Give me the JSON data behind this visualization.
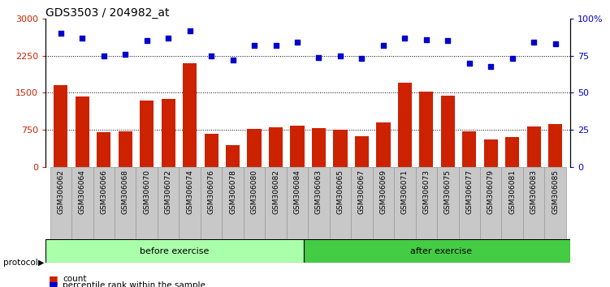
{
  "title": "GDS3503 / 204982_at",
  "categories": [
    "GSM306062",
    "GSM306064",
    "GSM306066",
    "GSM306068",
    "GSM306070",
    "GSM306072",
    "GSM306074",
    "GSM306076",
    "GSM306078",
    "GSM306080",
    "GSM306082",
    "GSM306084",
    "GSM306063",
    "GSM306065",
    "GSM306067",
    "GSM306069",
    "GSM306071",
    "GSM306073",
    "GSM306075",
    "GSM306077",
    "GSM306079",
    "GSM306081",
    "GSM306083",
    "GSM306085"
  ],
  "counts": [
    1650,
    1420,
    700,
    720,
    1350,
    1380,
    2100,
    680,
    440,
    770,
    800,
    830,
    790,
    760,
    620,
    900,
    1700,
    1520,
    1450,
    720,
    560,
    610,
    820,
    870
  ],
  "percentiles": [
    90,
    87,
    75,
    76,
    85,
    87,
    92,
    75,
    72,
    82,
    82,
    84,
    74,
    75,
    73,
    82,
    87,
    86,
    85,
    70,
    68,
    73,
    84,
    83
  ],
  "before_count": 12,
  "after_count": 12,
  "ylim_left": [
    0,
    3000
  ],
  "ylim_right": [
    0,
    100
  ],
  "yticks_left": [
    0,
    750,
    1500,
    2250,
    3000
  ],
  "ytick_labels_left": [
    "0",
    "750",
    "1500",
    "2250",
    "3000"
  ],
  "yticks_right": [
    0,
    25,
    50,
    75,
    100
  ],
  "ytick_labels_right": [
    "0",
    "25",
    "50",
    "75",
    "100%"
  ],
  "bar_color": "#CC2200",
  "dot_color": "#0000CC",
  "before_color": "#AAFFAA",
  "after_color": "#44CC44",
  "protocol_label": "protocol",
  "before_label": "before exercise",
  "after_label": "after exercise",
  "legend_count": "count",
  "legend_pct": "percentile rank within the sample",
  "grid_color": "#000000",
  "bg_color": "#FFFFFF",
  "tick_label_bg": "#C8C8C8",
  "tick_fontsize": 6.5,
  "bar_width": 0.65
}
